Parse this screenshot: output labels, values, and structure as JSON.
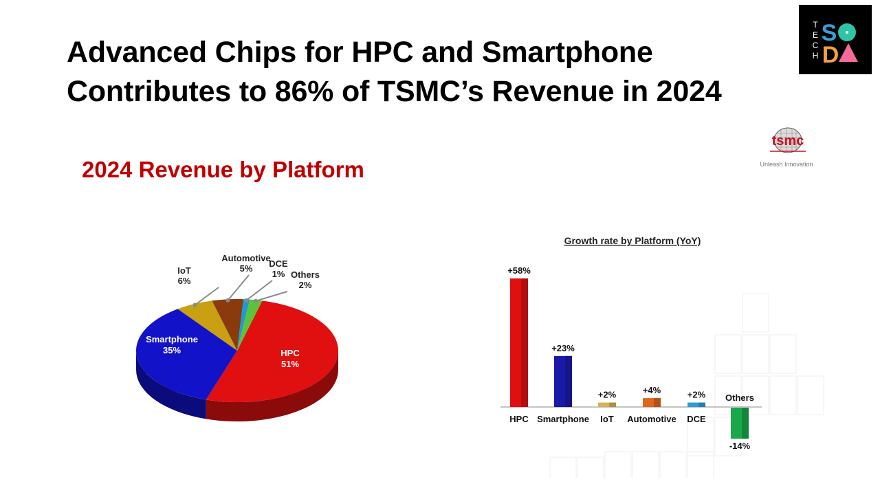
{
  "headline": {
    "line1": "Advanced Chips for HPC and Smartphone",
    "line2": "Contributes to 86% of TSMC’s Revenue in 2024"
  },
  "brand": {
    "letters_vertical": [
      "T",
      "E",
      "C",
      "H"
    ],
    "letters_color": [
      "S",
      "O",
      "D",
      "A"
    ],
    "colors": [
      "#3aa0d8",
      "#2ec4a6",
      "#f4a13a",
      "#f26b9a"
    ]
  },
  "tsmc_logo": {
    "wordmark": "tsmc",
    "tagline": "Unleash Innovation"
  },
  "platform_title": "2024 Revenue by Platform",
  "chart_data": [
    {
      "type": "pie",
      "title": "",
      "categories": [
        "HPC",
        "Smartphone",
        "IoT",
        "Automotive",
        "DCE",
        "Others"
      ],
      "values": [
        51,
        35,
        6,
        5,
        1,
        2
      ],
      "value_labels": [
        "51%",
        "35%",
        "6%",
        "5%",
        "1%",
        "2%"
      ],
      "colors": [
        "#e01010",
        "#1212c8",
        "#c8a012",
        "#8a3a0c",
        "#1b9ad6",
        "#5cc23a"
      ],
      "style": "3d"
    },
    {
      "type": "bar",
      "title": "Growth rate by Platform (YoY)",
      "categories": [
        "HPC",
        "Smartphone",
        "IoT",
        "Automotive",
        "DCE",
        "Others"
      ],
      "values": [
        58,
        23,
        2,
        4,
        2,
        -14
      ],
      "value_labels": [
        "+58%",
        "+23%",
        "+2%",
        "+4%",
        "+2%",
        "-14%"
      ],
      "colors": [
        "#e01010",
        "#1a1aa8",
        "#d4b456",
        "#e0661a",
        "#2a9ed8",
        "#19a84a"
      ],
      "ylim": [
        -14,
        58
      ],
      "grid": false,
      "legend": "none"
    }
  ]
}
